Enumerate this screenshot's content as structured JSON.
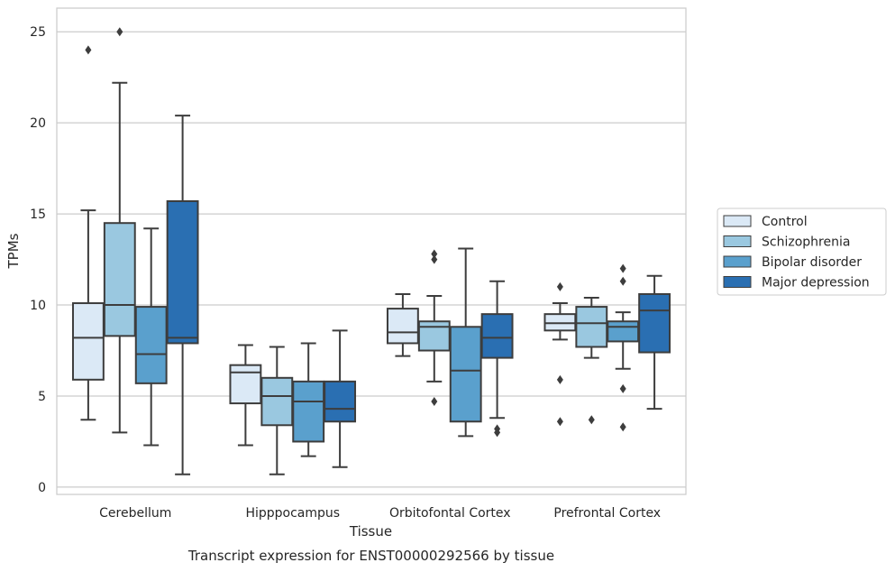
{
  "caption": "Transcript expression for ENST00000292566 by tissue",
  "chart_data": {
    "type": "box",
    "xlabel": "Tissue",
    "ylabel": "TPMs",
    "ylim": [
      -0.4,
      26.3
    ],
    "yticks": [
      0,
      5,
      10,
      15,
      20,
      25
    ],
    "grid": "horizontal",
    "legend_position": "right",
    "categories": [
      "Cerebellum",
      "Hipppocampus",
      "Orbitofontal Cortex",
      "Prefrontal Cortex"
    ],
    "series": [
      {
        "name": "Control",
        "color": "#dbe9f6",
        "boxes": [
          {
            "whislo": 3.7,
            "q1": 5.9,
            "med": 8.2,
            "q3": 10.1,
            "whishi": 15.2,
            "fliers": [
              24.0
            ]
          },
          {
            "whislo": 2.3,
            "q1": 4.6,
            "med": 6.3,
            "q3": 6.7,
            "whishi": 7.8,
            "fliers": []
          },
          {
            "whislo": 7.2,
            "q1": 7.9,
            "med": 8.5,
            "q3": 9.8,
            "whishi": 10.6,
            "fliers": []
          },
          {
            "whislo": 8.1,
            "q1": 8.6,
            "med": 9.0,
            "q3": 9.5,
            "whishi": 10.1,
            "fliers": [
              11.0,
              5.9,
              3.6
            ]
          }
        ]
      },
      {
        "name": "Schizophrenia",
        "color": "#9ac8e0",
        "boxes": [
          {
            "whislo": 3.0,
            "q1": 8.3,
            "med": 10.0,
            "q3": 14.5,
            "whishi": 22.2,
            "fliers": [
              25.0
            ]
          },
          {
            "whislo": 0.7,
            "q1": 3.4,
            "med": 5.0,
            "q3": 6.0,
            "whishi": 7.7,
            "fliers": []
          },
          {
            "whislo": 5.8,
            "q1": 7.5,
            "med": 8.8,
            "q3": 9.1,
            "whishi": 10.5,
            "fliers": [
              12.8,
              12.5,
              4.7
            ]
          },
          {
            "whislo": 7.1,
            "q1": 7.7,
            "med": 9.0,
            "q3": 9.9,
            "whishi": 10.4,
            "fliers": [
              3.7
            ]
          }
        ]
      },
      {
        "name": "Bipolar disorder",
        "color": "#5aa0cd",
        "boxes": [
          {
            "whislo": 2.3,
            "q1": 5.7,
            "med": 7.3,
            "q3": 9.9,
            "whishi": 14.2,
            "fliers": []
          },
          {
            "whislo": 1.7,
            "q1": 2.5,
            "med": 4.7,
            "q3": 5.8,
            "whishi": 7.9,
            "fliers": []
          },
          {
            "whislo": 2.8,
            "q1": 3.6,
            "med": 6.4,
            "q3": 8.8,
            "whishi": 13.1,
            "fliers": []
          },
          {
            "whislo": 6.5,
            "q1": 8.0,
            "med": 8.8,
            "q3": 9.1,
            "whishi": 9.6,
            "fliers": [
              12.0,
              11.3,
              5.4,
              3.3
            ]
          }
        ]
      },
      {
        "name": "Major depression",
        "color": "#2a6fb2",
        "boxes": [
          {
            "whislo": 0.7,
            "q1": 7.9,
            "med": 8.2,
            "q3": 15.7,
            "whishi": 20.4,
            "fliers": []
          },
          {
            "whislo": 1.1,
            "q1": 3.6,
            "med": 4.3,
            "q3": 5.8,
            "whishi": 8.6,
            "fliers": []
          },
          {
            "whislo": 3.8,
            "q1": 7.1,
            "med": 8.2,
            "q3": 9.5,
            "whishi": 11.3,
            "fliers": [
              3.2,
              3.0
            ]
          },
          {
            "whislo": 4.3,
            "q1": 7.4,
            "med": 9.7,
            "q3": 10.6,
            "whishi": 11.6,
            "fliers": []
          }
        ]
      }
    ]
  }
}
